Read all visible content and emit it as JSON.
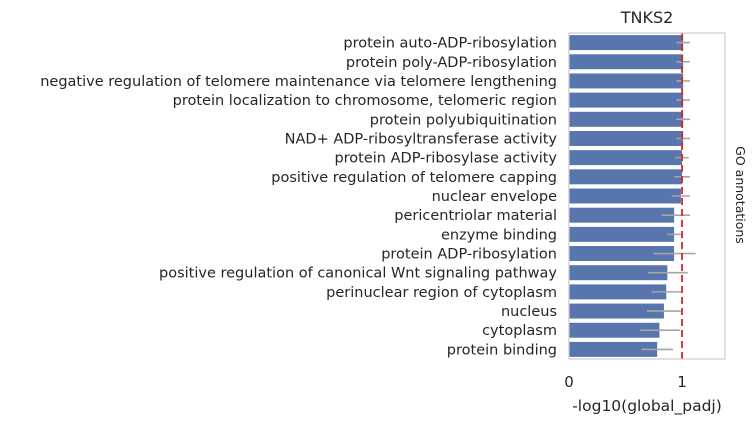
{
  "chart_data": {
    "type": "bar",
    "orientation": "horizontal",
    "title": "TNKS2",
    "xlabel": "-log10(global_padj)",
    "side_label": "GO annotations",
    "xlim": [
      0,
      1.38
    ],
    "xticks": [
      0,
      1
    ],
    "grid": false,
    "threshold_line": {
      "value": 1.0,
      "style": "dashed",
      "color": "#d62728"
    },
    "bar_color": "#5975ad",
    "error_color": "#a6a6a6",
    "categories": [
      "protein auto-ADP-ribosylation",
      "protein poly-ADP-ribosylation",
      "negative regulation of telomere maintenance via telomere lengthening",
      "protein localization to chromosome, telomeric region",
      "protein polyubiquitination",
      "NAD+ ADP-ribosyltransferase activity",
      "protein ADP-ribosylase activity",
      "positive regulation of telomere capping",
      "nuclear envelope",
      "pericentriolar material",
      "enzyme binding",
      "protein ADP-ribosylation",
      "positive regulation of canonical Wnt signaling pathway",
      "perinuclear region of cytoplasm",
      "nucleus",
      "cytoplasm",
      "protein binding"
    ],
    "values": [
      1.01,
      1.01,
      1.01,
      1.01,
      1.01,
      1.01,
      1.0,
      1.0,
      0.99,
      0.93,
      0.93,
      0.93,
      0.87,
      0.86,
      0.84,
      0.8,
      0.78
    ],
    "errors": [
      [
        0.95,
        1.07
      ],
      [
        0.95,
        1.07
      ],
      [
        0.95,
        1.07
      ],
      [
        0.95,
        1.07
      ],
      [
        0.95,
        1.07
      ],
      [
        0.95,
        1.07
      ],
      [
        0.94,
        1.06
      ],
      [
        0.93,
        1.07
      ],
      [
        0.91,
        1.07
      ],
      [
        0.82,
        1.07
      ],
      [
        0.87,
        0.99
      ],
      [
        0.75,
        1.12
      ],
      [
        0.7,
        1.05
      ],
      [
        0.73,
        0.99
      ],
      [
        0.69,
        0.99
      ],
      [
        0.63,
        0.98
      ],
      [
        0.64,
        0.92
      ]
    ]
  }
}
